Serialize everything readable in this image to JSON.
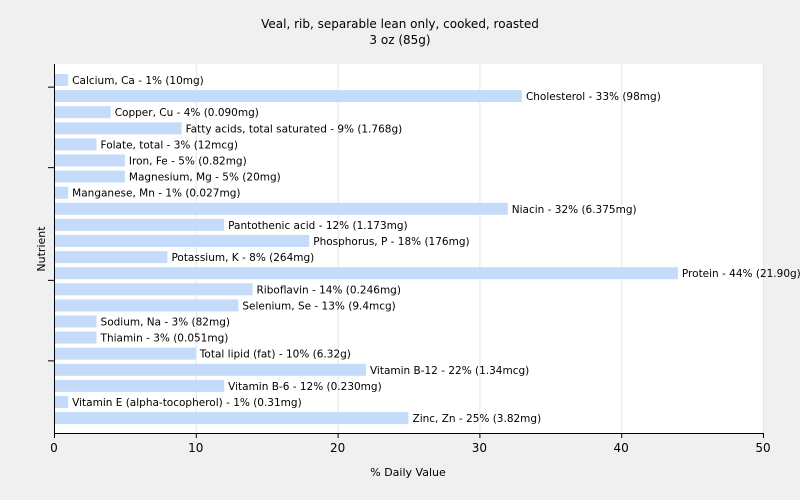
{
  "chart_data": {
    "type": "bar",
    "orientation": "horizontal",
    "title": "Veal, rib, separable lean only, cooked, roasted",
    "subtitle": "3 oz (85g)",
    "xlabel": "% Daily Value",
    "ylabel": "Nutrient",
    "xlim": [
      0,
      50
    ],
    "xticks": [
      0,
      10,
      20,
      30,
      40,
      50
    ],
    "grid": true,
    "bars": [
      {
        "label": "Calcium, Ca - 1% (10mg)",
        "value": 1
      },
      {
        "label": "Cholesterol - 33% (98mg)",
        "value": 33
      },
      {
        "label": "Copper, Cu - 4% (0.090mg)",
        "value": 4
      },
      {
        "label": "Fatty acids, total saturated - 9% (1.768g)",
        "value": 9
      },
      {
        "label": "Folate, total - 3% (12mcg)",
        "value": 3
      },
      {
        "label": "Iron, Fe - 5% (0.82mg)",
        "value": 5
      },
      {
        "label": "Magnesium, Mg - 5% (20mg)",
        "value": 5
      },
      {
        "label": "Manganese, Mn - 1% (0.027mg)",
        "value": 1
      },
      {
        "label": "Niacin - 32% (6.375mg)",
        "value": 32
      },
      {
        "label": "Pantothenic acid - 12% (1.173mg)",
        "value": 12
      },
      {
        "label": "Phosphorus, P - 18% (176mg)",
        "value": 18
      },
      {
        "label": "Potassium, K - 8% (264mg)",
        "value": 8
      },
      {
        "label": "Protein - 44% (21.90g)",
        "value": 44
      },
      {
        "label": "Riboflavin - 14% (0.246mg)",
        "value": 14
      },
      {
        "label": "Selenium, Se - 13% (9.4mcg)",
        "value": 13
      },
      {
        "label": "Sodium, Na - 3% (82mg)",
        "value": 3
      },
      {
        "label": "Thiamin - 3% (0.051mg)",
        "value": 3
      },
      {
        "label": "Total lipid (fat) - 10% (6.32g)",
        "value": 10
      },
      {
        "label": "Vitamin B-12 - 22% (1.34mcg)",
        "value": 22
      },
      {
        "label": "Vitamin B-6 - 12% (0.230mg)",
        "value": 12
      },
      {
        "label": "Vitamin E (alpha-tocopherol) - 1% (0.31mg)",
        "value": 1
      },
      {
        "label": "Zinc, Zn - 25% (3.82mg)",
        "value": 25
      }
    ],
    "colors": {
      "bar": "#c4dcfa",
      "background": "#f0f0f0",
      "plot_background": "#ffffff",
      "grid": "#e4e4e4"
    }
  }
}
